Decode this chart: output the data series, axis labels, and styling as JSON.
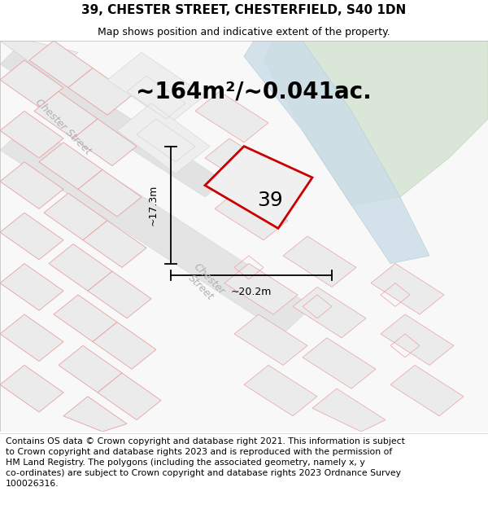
{
  "title_line1": "39, CHESTER STREET, CHESTERFIELD, S40 1DN",
  "title_line2": "Map shows position and indicative extent of the property.",
  "area_text": "~164m²/~0.041ac.",
  "width_label": "~20.2m",
  "height_label": "~17.3m",
  "property_number": "39",
  "footer_text": "Contains OS data © Crown copyright and database right 2021. This information is subject to Crown copyright and database rights 2023 and is reproduced with the permission of HM Land Registry. The polygons (including the associated geometry, namely x, y co-ordinates) are subject to Crown copyright and database rights 2023 Ordnance Survey 100026316.",
  "map_bg": "#f7f7f7",
  "road_fill": "#e8e8e8",
  "block_fill": "#ebebeb",
  "block_edge_pink": "#e8a0a0",
  "block_edge_gray": "#d0d0d0",
  "property_edge": "#cc0000",
  "property_fill": "#f0f0f0",
  "water_fill": "#ccdde8",
  "water_edge": "#b8ccd8",
  "green_fill": "#d0e0cc",
  "green_edge": "#c0d0bc",
  "street_label_color": "#b0b0b0",
  "annotation_color": "#222222",
  "title_fontsize": 11,
  "subtitle_fontsize": 9,
  "area_fontsize": 20,
  "number_fontsize": 18,
  "footer_fontsize": 7.8,
  "street_fontsize": 9
}
